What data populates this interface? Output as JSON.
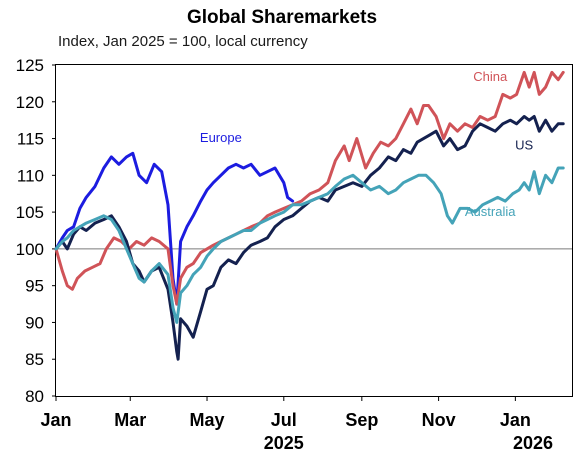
{
  "chart_data": {
    "type": "line",
    "title": "Global Sharemarkets",
    "subtitle": "Index, Jan 2025 = 100, local currency",
    "xlabel": "",
    "ylabel": "",
    "x_range": [
      "2025-01-01",
      "2026-02-15"
    ],
    "ylim": [
      80,
      125
    ],
    "y_ticks": [
      80,
      85,
      90,
      95,
      100,
      105,
      110,
      115,
      120,
      125
    ],
    "x_tick_labels": [
      "Jan",
      "Mar",
      "May",
      "Jul",
      "Sep",
      "Nov",
      "Jan",
      "2026"
    ],
    "x_ticks": [
      {
        "label": "Jan",
        "date": "2025-01-01"
      },
      {
        "label": "Mar",
        "date": "2025-03-01"
      },
      {
        "label": "May",
        "date": "2025-05-01"
      },
      {
        "label": "Jul",
        "date": "2025-07-01"
      },
      {
        "label": "Sep",
        "date": "2025-09-01"
      },
      {
        "label": "Nov",
        "date": "2025-11-01"
      },
      {
        "label": "Jan",
        "date": "2026-01-01"
      }
    ],
    "year_labels": [
      {
        "label": "2025",
        "date": "2025-07-01"
      },
      {
        "label": "2026",
        "date": "2026-01-15"
      }
    ],
    "reference_line": 100,
    "grid": false,
    "legend": "inline labels",
    "series": [
      {
        "name": "Europe",
        "color": "#1c1ce0",
        "points": [
          [
            "2025-01-01",
            100
          ],
          [
            "2025-01-06",
            101.5
          ],
          [
            "2025-01-10",
            102.5
          ],
          [
            "2025-01-15",
            103
          ],
          [
            "2025-01-20",
            105.5
          ],
          [
            "2025-01-25",
            107
          ],
          [
            "2025-02-01",
            108.5
          ],
          [
            "2025-02-08",
            111
          ],
          [
            "2025-02-14",
            112.5
          ],
          [
            "2025-02-20",
            111.5
          ],
          [
            "2025-02-26",
            112.5
          ],
          [
            "2025-03-03",
            113
          ],
          [
            "2025-03-08",
            110
          ],
          [
            "2025-03-14",
            109
          ],
          [
            "2025-03-20",
            111.5
          ],
          [
            "2025-03-26",
            110.5
          ],
          [
            "2025-03-31",
            106
          ],
          [
            "2025-04-04",
            96
          ],
          [
            "2025-04-07",
            92.5
          ],
          [
            "2025-04-10",
            101
          ],
          [
            "2025-04-15",
            103
          ],
          [
            "2025-04-20",
            104.5
          ],
          [
            "2025-04-26",
            106.5
          ],
          [
            "2025-05-01",
            108
          ],
          [
            "2025-05-06",
            109
          ],
          [
            "2025-05-12",
            110
          ],
          [
            "2025-05-18",
            111
          ],
          [
            "2025-05-24",
            111.5
          ],
          [
            "2025-05-30",
            111
          ],
          [
            "2025-06-05",
            111.5
          ],
          [
            "2025-06-12",
            110
          ],
          [
            "2025-06-18",
            110.5
          ],
          [
            "2025-06-24",
            111
          ],
          [
            "2025-07-01",
            109
          ],
          [
            "2025-07-04",
            107
          ],
          [
            "2025-07-08",
            106.5
          ]
        ]
      },
      {
        "name": "China",
        "color": "#d05358",
        "points": [
          [
            "2025-01-01",
            100
          ],
          [
            "2025-01-06",
            97
          ],
          [
            "2025-01-10",
            95
          ],
          [
            "2025-01-14",
            94.5
          ],
          [
            "2025-01-18",
            96
          ],
          [
            "2025-01-24",
            97
          ],
          [
            "2025-01-30",
            97.5
          ],
          [
            "2025-02-05",
            98
          ],
          [
            "2025-02-10",
            100
          ],
          [
            "2025-02-16",
            101.5
          ],
          [
            "2025-02-22",
            101
          ],
          [
            "2025-02-28",
            100
          ],
          [
            "2025-03-06",
            101
          ],
          [
            "2025-03-12",
            100.5
          ],
          [
            "2025-03-18",
            101.5
          ],
          [
            "2025-03-24",
            101
          ],
          [
            "2025-03-31",
            100
          ],
          [
            "2025-04-04",
            95
          ],
          [
            "2025-04-07",
            92.5
          ],
          [
            "2025-04-10",
            96
          ],
          [
            "2025-04-15",
            97.5
          ],
          [
            "2025-04-20",
            98
          ],
          [
            "2025-04-26",
            99.5
          ],
          [
            "2025-05-01",
            100
          ],
          [
            "2025-05-06",
            100.5
          ],
          [
            "2025-05-12",
            101
          ],
          [
            "2025-05-18",
            101.5
          ],
          [
            "2025-05-24",
            102
          ],
          [
            "2025-05-30",
            102.5
          ],
          [
            "2025-06-05",
            103
          ],
          [
            "2025-06-12",
            103.5
          ],
          [
            "2025-06-18",
            104.5
          ],
          [
            "2025-06-24",
            105
          ],
          [
            "2025-07-01",
            105.5
          ],
          [
            "2025-07-08",
            106
          ],
          [
            "2025-07-15",
            106.5
          ],
          [
            "2025-07-22",
            107.5
          ],
          [
            "2025-07-29",
            108
          ],
          [
            "2025-08-05",
            109
          ],
          [
            "2025-08-11",
            112
          ],
          [
            "2025-08-18",
            114
          ],
          [
            "2025-08-22",
            112
          ],
          [
            "2025-08-28",
            115
          ],
          [
            "2025-09-04",
            111
          ],
          [
            "2025-09-10",
            113
          ],
          [
            "2025-09-16",
            114.5
          ],
          [
            "2025-09-22",
            114
          ],
          [
            "2025-09-28",
            115
          ],
          [
            "2025-10-04",
            117
          ],
          [
            "2025-10-10",
            119
          ],
          [
            "2025-10-15",
            117
          ],
          [
            "2025-10-20",
            119.5
          ],
          [
            "2025-10-24",
            119.5
          ],
          [
            "2025-10-30",
            118
          ],
          [
            "2025-11-05",
            115
          ],
          [
            "2025-11-10",
            117
          ],
          [
            "2025-11-16",
            116
          ],
          [
            "2025-11-22",
            117
          ],
          [
            "2025-11-28",
            116.5
          ],
          [
            "2025-12-04",
            118
          ],
          [
            "2025-12-10",
            117.5
          ],
          [
            "2025-12-16",
            118
          ],
          [
            "2025-12-22",
            121
          ],
          [
            "2025-12-28",
            120.5
          ],
          [
            "2026-01-02",
            121
          ],
          [
            "2026-01-08",
            124
          ],
          [
            "2026-01-12",
            122
          ],
          [
            "2026-01-16",
            124
          ],
          [
            "2026-01-20",
            121
          ],
          [
            "2026-01-25",
            122
          ],
          [
            "2026-01-30",
            124
          ],
          [
            "2026-02-04",
            123
          ],
          [
            "2026-02-08",
            124
          ]
        ]
      },
      {
        "name": "US",
        "color": "#14214f",
        "points": [
          [
            "2025-01-01",
            100
          ],
          [
            "2025-01-06",
            101
          ],
          [
            "2025-01-10",
            100
          ],
          [
            "2025-01-15",
            102
          ],
          [
            "2025-01-20",
            103
          ],
          [
            "2025-01-25",
            102.5
          ],
          [
            "2025-02-01",
            103.5
          ],
          [
            "2025-02-08",
            104
          ],
          [
            "2025-02-14",
            104.5
          ],
          [
            "2025-02-20",
            103
          ],
          [
            "2025-02-26",
            101
          ],
          [
            "2025-03-03",
            98
          ],
          [
            "2025-03-08",
            97
          ],
          [
            "2025-03-12",
            95.5
          ],
          [
            "2025-03-18",
            97
          ],
          [
            "2025-03-24",
            97.5
          ],
          [
            "2025-03-31",
            94.5
          ],
          [
            "2025-04-04",
            90
          ],
          [
            "2025-04-07",
            86
          ],
          [
            "2025-04-08",
            85
          ],
          [
            "2025-04-10",
            90.5
          ],
          [
            "2025-04-15",
            89.5
          ],
          [
            "2025-04-20",
            88
          ],
          [
            "2025-04-26",
            91.5
          ],
          [
            "2025-05-01",
            94.5
          ],
          [
            "2025-05-06",
            95
          ],
          [
            "2025-05-12",
            97.5
          ],
          [
            "2025-05-18",
            98.5
          ],
          [
            "2025-05-24",
            98
          ],
          [
            "2025-05-30",
            99.5
          ],
          [
            "2025-06-05",
            100.5
          ],
          [
            "2025-06-12",
            101
          ],
          [
            "2025-06-18",
            101.5
          ],
          [
            "2025-06-24",
            103
          ],
          [
            "2025-07-01",
            104
          ],
          [
            "2025-07-08",
            104.5
          ],
          [
            "2025-07-15",
            105.5
          ],
          [
            "2025-07-22",
            106.5
          ],
          [
            "2025-07-29",
            107
          ],
          [
            "2025-08-05",
            106.5
          ],
          [
            "2025-08-11",
            108
          ],
          [
            "2025-08-18",
            108.5
          ],
          [
            "2025-08-25",
            109
          ],
          [
            "2025-09-01",
            108.5
          ],
          [
            "2025-09-08",
            110
          ],
          [
            "2025-09-15",
            111
          ],
          [
            "2025-09-22",
            112.5
          ],
          [
            "2025-09-28",
            112
          ],
          [
            "2025-10-04",
            113.5
          ],
          [
            "2025-10-10",
            113
          ],
          [
            "2025-10-15",
            114.5
          ],
          [
            "2025-10-20",
            115
          ],
          [
            "2025-10-25",
            115.5
          ],
          [
            "2025-10-30",
            116
          ],
          [
            "2025-11-05",
            114
          ],
          [
            "2025-11-10",
            115
          ],
          [
            "2025-11-16",
            113.5
          ],
          [
            "2025-11-22",
            114
          ],
          [
            "2025-11-28",
            116
          ],
          [
            "2025-12-04",
            117
          ],
          [
            "2025-12-10",
            116.5
          ],
          [
            "2025-12-16",
            116
          ],
          [
            "2025-12-22",
            117
          ],
          [
            "2025-12-28",
            117.5
          ],
          [
            "2026-01-02",
            117
          ],
          [
            "2026-01-08",
            118
          ],
          [
            "2026-01-12",
            117.5
          ],
          [
            "2026-01-16",
            118
          ],
          [
            "2026-01-20",
            116
          ],
          [
            "2026-01-25",
            117.5
          ],
          [
            "2026-01-30",
            116
          ],
          [
            "2026-02-04",
            117
          ],
          [
            "2026-02-08",
            117
          ]
        ]
      },
      {
        "name": "Australia",
        "color": "#44a3b8",
        "points": [
          [
            "2025-01-01",
            100
          ],
          [
            "2025-01-06",
            101
          ],
          [
            "2025-01-10",
            101.5
          ],
          [
            "2025-01-15",
            102.5
          ],
          [
            "2025-01-20",
            103
          ],
          [
            "2025-01-25",
            103.5
          ],
          [
            "2025-02-01",
            104
          ],
          [
            "2025-02-08",
            104.5
          ],
          [
            "2025-02-14",
            104
          ],
          [
            "2025-02-20",
            102.5
          ],
          [
            "2025-02-26",
            100
          ],
          [
            "2025-03-03",
            98
          ],
          [
            "2025-03-08",
            96
          ],
          [
            "2025-03-12",
            95.5
          ],
          [
            "2025-03-18",
            97
          ],
          [
            "2025-03-24",
            98
          ],
          [
            "2025-03-31",
            96.5
          ],
          [
            "2025-04-04",
            92
          ],
          [
            "2025-04-07",
            90
          ],
          [
            "2025-04-10",
            94
          ],
          [
            "2025-04-15",
            95
          ],
          [
            "2025-04-20",
            96.5
          ],
          [
            "2025-04-26",
            97.5
          ],
          [
            "2025-05-01",
            99
          ],
          [
            "2025-05-06",
            100
          ],
          [
            "2025-05-12",
            101
          ],
          [
            "2025-05-18",
            101.5
          ],
          [
            "2025-05-24",
            102
          ],
          [
            "2025-05-30",
            102.5
          ],
          [
            "2025-06-05",
            102.5
          ],
          [
            "2025-06-12",
            103.5
          ],
          [
            "2025-06-18",
            104
          ],
          [
            "2025-06-24",
            104.5
          ],
          [
            "2025-07-01",
            105
          ],
          [
            "2025-07-08",
            106
          ],
          [
            "2025-07-15",
            106
          ],
          [
            "2025-07-22",
            106.5
          ],
          [
            "2025-07-29",
            107
          ],
          [
            "2025-08-05",
            107.5
          ],
          [
            "2025-08-11",
            108.5
          ],
          [
            "2025-08-18",
            109.5
          ],
          [
            "2025-08-25",
            110
          ],
          [
            "2025-09-01",
            109
          ],
          [
            "2025-09-08",
            108
          ],
          [
            "2025-09-15",
            108.5
          ],
          [
            "2025-09-22",
            107.5
          ],
          [
            "2025-09-28",
            108
          ],
          [
            "2025-10-04",
            109
          ],
          [
            "2025-10-10",
            109.5
          ],
          [
            "2025-10-16",
            110
          ],
          [
            "2025-10-22",
            110
          ],
          [
            "2025-10-28",
            109
          ],
          [
            "2025-11-03",
            107.5
          ],
          [
            "2025-11-08",
            104.5
          ],
          [
            "2025-11-12",
            103.5
          ],
          [
            "2025-11-18",
            105.5
          ],
          [
            "2025-11-24",
            105.5
          ],
          [
            "2025-11-30",
            105
          ],
          [
            "2025-12-06",
            106
          ],
          [
            "2025-12-12",
            106.5
          ],
          [
            "2025-12-18",
            107
          ],
          [
            "2025-12-24",
            106.5
          ],
          [
            "2025-12-30",
            107.5
          ],
          [
            "2026-01-04",
            108
          ],
          [
            "2026-01-08",
            109
          ],
          [
            "2026-01-12",
            108
          ],
          [
            "2026-01-16",
            110.5
          ],
          [
            "2026-01-20",
            107.5
          ],
          [
            "2026-01-25",
            110
          ],
          [
            "2026-01-30",
            109
          ],
          [
            "2026-02-04",
            111
          ],
          [
            "2026-02-08",
            111
          ]
        ]
      }
    ],
    "series_labels": [
      {
        "text": "Europe",
        "series": "Europe",
        "at": [
          "2025-05-12",
          114.5
        ]
      },
      {
        "text": "China",
        "series": "China",
        "at": [
          "2025-12-12",
          122.8
        ]
      },
      {
        "text": "US",
        "series": "US",
        "at": [
          "2026-01-08",
          113.5
        ]
      },
      {
        "text": "Australia",
        "series": "Australia",
        "at": [
          "2025-12-12",
          104.5
        ]
      }
    ]
  }
}
